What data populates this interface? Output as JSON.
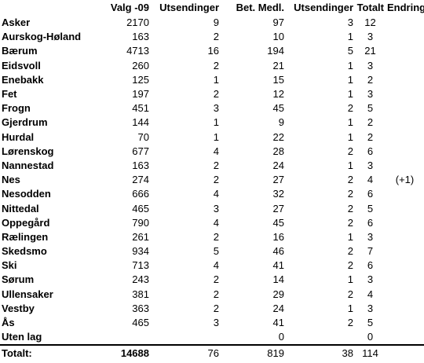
{
  "headers": [
    "",
    "Valg -09",
    "Utsendinger",
    "Bet. Medl.",
    "Utsendinger",
    "Totalt",
    "Endring"
  ],
  "rows": [
    [
      "Asker",
      "2170",
      "9",
      "97",
      "3",
      "12",
      ""
    ],
    [
      "Aurskog-Høland",
      "163",
      "2",
      "10",
      "1",
      "3",
      ""
    ],
    [
      "Bærum",
      "4713",
      "16",
      "194",
      "5",
      "21",
      ""
    ],
    [
      "Eidsvoll",
      "260",
      "2",
      "21",
      "1",
      "3",
      ""
    ],
    [
      "Enebakk",
      "125",
      "1",
      "15",
      "1",
      "2",
      ""
    ],
    [
      "Fet",
      "197",
      "2",
      "12",
      "1",
      "3",
      ""
    ],
    [
      "Frogn",
      "451",
      "3",
      "45",
      "2",
      "5",
      ""
    ],
    [
      "Gjerdrum",
      "144",
      "1",
      "9",
      "1",
      "2",
      ""
    ],
    [
      "Hurdal",
      "70",
      "1",
      "22",
      "1",
      "2",
      ""
    ],
    [
      "Lørenskog",
      "677",
      "4",
      "28",
      "2",
      "6",
      ""
    ],
    [
      "Nannestad",
      "163",
      "2",
      "24",
      "1",
      "3",
      ""
    ],
    [
      "Nes",
      "274",
      "2",
      "27",
      "2",
      "4",
      "(+1)"
    ],
    [
      "Nesodden",
      "666",
      "4",
      "32",
      "2",
      "6",
      ""
    ],
    [
      "Nittedal",
      "465",
      "3",
      "27",
      "2",
      "5",
      ""
    ],
    [
      "Oppegård",
      "790",
      "4",
      "45",
      "2",
      "6",
      ""
    ],
    [
      "Rælingen",
      "261",
      "2",
      "16",
      "1",
      "3",
      ""
    ],
    [
      "Skedsmo",
      "934",
      "5",
      "46",
      "2",
      "7",
      ""
    ],
    [
      "Ski",
      "713",
      "4",
      "41",
      "2",
      "6",
      ""
    ],
    [
      "Sørum",
      "243",
      "2",
      "14",
      "1",
      "3",
      ""
    ],
    [
      "Ullensaker",
      "381",
      "2",
      "29",
      "2",
      "4",
      ""
    ],
    [
      "Vestby",
      "363",
      "2",
      "24",
      "1",
      "3",
      ""
    ],
    [
      "Ås",
      "465",
      "3",
      "41",
      "2",
      "5",
      ""
    ],
    [
      "Uten lag",
      "",
      "",
      "0",
      "",
      "0",
      ""
    ]
  ],
  "totals": [
    "Totalt:",
    "14688",
    "76",
    "819",
    "38",
    "114",
    ""
  ]
}
